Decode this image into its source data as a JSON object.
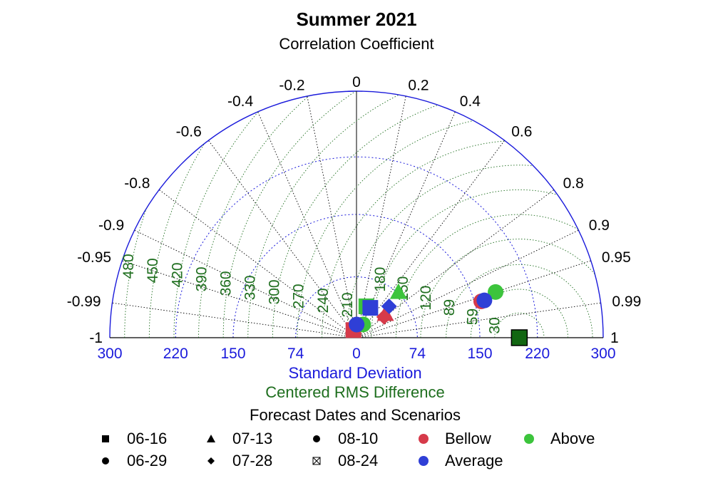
{
  "chart_data": {
    "type": "scatter",
    "diagram": "taylor",
    "title": "Summer 2021",
    "subtitle": "Correlation Coefficient",
    "sd_axis_label": "Standard Deviation",
    "rms_axis_label": "Centered RMS Difference",
    "sd_range": [
      0,
      300
    ],
    "sd_ticks": [
      {
        "value": 0,
        "label": "0"
      },
      {
        "value": 74,
        "label": "74"
      },
      {
        "value": 150,
        "label": "150"
      },
      {
        "value": 220,
        "label": "220"
      },
      {
        "value": 300,
        "label": "300"
      }
    ],
    "correlation_ticks": [
      {
        "value": -1,
        "label": "-1"
      },
      {
        "value": -0.99,
        "label": "-0.99"
      },
      {
        "value": -0.95,
        "label": "-0.95"
      },
      {
        "value": -0.9,
        "label": "-0.9"
      },
      {
        "value": -0.8,
        "label": "-0.8"
      },
      {
        "value": -0.6,
        "label": "-0.6"
      },
      {
        "value": -0.4,
        "label": "-0.4"
      },
      {
        "value": -0.2,
        "label": "-0.2"
      },
      {
        "value": 0,
        "label": "0"
      },
      {
        "value": 0.2,
        "label": "0.2"
      },
      {
        "value": 0.4,
        "label": "0.4"
      },
      {
        "value": 0.6,
        "label": "0.6"
      },
      {
        "value": 0.8,
        "label": "0.8"
      },
      {
        "value": 0.9,
        "label": "0.9"
      },
      {
        "value": 0.95,
        "label": "0.95"
      },
      {
        "value": 0.99,
        "label": "0.99"
      },
      {
        "value": 1,
        "label": "1"
      }
    ],
    "reference_sd": 198,
    "rms_contours": [
      30,
      59,
      89,
      120,
      150,
      180,
      210,
      240,
      270,
      300,
      330,
      360,
      390,
      420,
      450,
      480
    ],
    "sd_grid_circles": [
      74,
      150,
      220,
      300
    ],
    "colors": {
      "Bellow": "#d63a4a",
      "Above": "#3cc43c",
      "Average": "#2f3fd6",
      "reference": "#126612",
      "sd_grid": "#1a1adb",
      "rms_grid": "#1e6e1e",
      "corr_grid": "#000000"
    },
    "points": [
      {
        "date": "06-16",
        "scenario": "Reference",
        "sd": 198,
        "corr": 1.0
      },
      {
        "date": "06-16",
        "scenario": "Bellow",
        "sd": 10,
        "corr": -0.37
      },
      {
        "date": "06-16",
        "scenario": "Above",
        "sd": 40,
        "corr": 0.3
      },
      {
        "date": "06-16",
        "scenario": "Average",
        "sd": 40,
        "corr": 0.42
      },
      {
        "date": "06-29",
        "scenario": "Bellow",
        "sd": 158,
        "corr": 0.96
      },
      {
        "date": "06-29",
        "scenario": "Above",
        "sd": 178,
        "corr": 0.95
      },
      {
        "date": "06-29",
        "scenario": "Average",
        "sd": 162,
        "corr": 0.96
      },
      {
        "date": "06-29",
        "scenario": "Above",
        "sd": 18,
        "corr": 0.45
      },
      {
        "date": "06-29",
        "scenario": "Average",
        "sd": 16,
        "corr": 0.01
      },
      {
        "date": "07-13",
        "scenario": "Above",
        "sd": 75,
        "corr": 0.68
      },
      {
        "date": "07-13",
        "scenario": "Bellow",
        "sd": 45,
        "corr": 0.78
      },
      {
        "date": "07-28",
        "scenario": "Average",
        "sd": 55,
        "corr": 0.72
      },
      {
        "date": "07-28",
        "scenario": "Bellow",
        "sd": 42,
        "corr": 0.8
      }
    ],
    "legend": {
      "title": "Forecast Dates and Scenarios",
      "dates": [
        {
          "label": "06-16",
          "marker": "square"
        },
        {
          "label": "06-29",
          "marker": "circle"
        },
        {
          "label": "07-13",
          "marker": "triangle"
        },
        {
          "label": "07-28",
          "marker": "diamond"
        },
        {
          "label": "08-10",
          "marker": "circle"
        },
        {
          "label": "08-24",
          "marker": "x-square"
        }
      ],
      "scenarios": [
        {
          "label": "Bellow",
          "color": "#d63a4a"
        },
        {
          "label": "Above",
          "color": "#3cc43c"
        },
        {
          "label": "Average",
          "color": "#2f3fd6"
        }
      ]
    }
  }
}
